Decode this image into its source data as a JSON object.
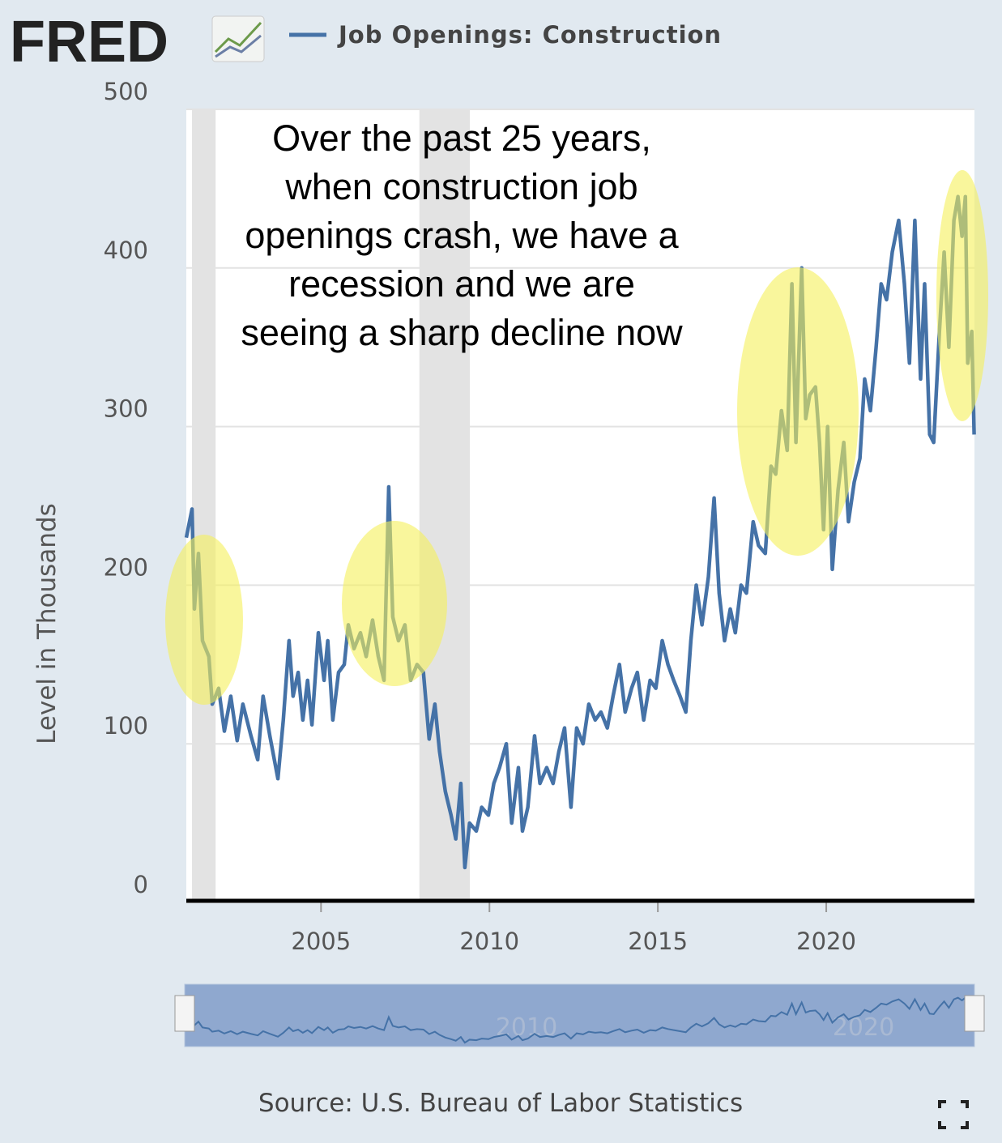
{
  "logo": "FRED",
  "source": "Source: U.S. Bureau of Labor Statistics",
  "chart_data": {
    "type": "line",
    "y_label": "Level in Thousands",
    "annotation": [
      "Over the past 25 years,",
      "when construction job",
      "openings crash, we have a",
      "recession and we are",
      "seeing a sharp decline now"
    ],
    "xlim": [
      2001,
      2024.4
    ],
    "xticks": [
      2005,
      2010,
      2015,
      2020
    ],
    "ylim": [
      0,
      500
    ],
    "yticks": [
      0,
      100,
      200,
      300,
      400,
      500
    ],
    "grid": true,
    "recessions": [
      [
        2001.17,
        2001.87
      ],
      [
        2007.92,
        2009.42
      ]
    ],
    "navigator_labels": [
      "2010",
      "2020"
    ],
    "x": [
      2001.0,
      2001.17,
      2001.24,
      2001.36,
      2001.48,
      2001.67,
      2001.77,
      2001.96,
      2002.13,
      2002.32,
      2002.51,
      2002.68,
      2002.92,
      2003.12,
      2003.28,
      2003.48,
      2003.72,
      2003.88,
      2004.05,
      2004.17,
      2004.32,
      2004.46,
      2004.6,
      2004.73,
      2004.92,
      2005.09,
      2005.2,
      2005.35,
      2005.52,
      2005.69,
      2005.81,
      2005.98,
      2006.17,
      2006.34,
      2006.53,
      2006.7,
      2006.87,
      2007.01,
      2007.13,
      2007.3,
      2007.49,
      2007.66,
      2007.85,
      2008.04,
      2008.21,
      2008.38,
      2008.52,
      2008.69,
      2008.86,
      2009.0,
      2009.15,
      2009.27,
      2009.41,
      2009.61,
      2009.77,
      2009.97,
      2010.13,
      2010.3,
      2010.5,
      2010.66,
      2010.86,
      2010.98,
      2011.14,
      2011.34,
      2011.5,
      2011.7,
      2011.89,
      2012.06,
      2012.23,
      2012.42,
      2012.59,
      2012.78,
      2012.95,
      2013.14,
      2013.31,
      2013.5,
      2013.67,
      2013.86,
      2014.03,
      2014.22,
      2014.39,
      2014.58,
      2014.77,
      2014.94,
      2015.13,
      2015.3,
      2015.47,
      2015.66,
      2015.83,
      2015.98,
      2016.14,
      2016.31,
      2016.5,
      2016.67,
      2016.82,
      2016.98,
      2017.15,
      2017.3,
      2017.47,
      2017.63,
      2017.83,
      2017.99,
      2018.19,
      2018.36,
      2018.5,
      2018.67,
      2018.84,
      2018.98,
      2019.1,
      2019.27,
      2019.39,
      2019.51,
      2019.68,
      2019.8,
      2019.92,
      2020.04,
      2020.18,
      2020.35,
      2020.52,
      2020.66,
      2020.83,
      2021.0,
      2021.14,
      2021.31,
      2021.48,
      2021.63,
      2021.79,
      2021.96,
      2022.15,
      2022.32,
      2022.47,
      2022.63,
      2022.8,
      2022.92,
      2023.07,
      2023.19,
      2023.36,
      2023.5,
      2023.64,
      2023.79,
      2023.91,
      2024.03,
      2024.13,
      2024.2,
      2024.32,
      2024.39
    ],
    "series": [
      {
        "name": "Job Openings: Construction",
        "color": "#4572a7",
        "values": [
          230,
          248,
          185,
          220,
          165,
          155,
          125,
          135,
          108,
          130,
          102,
          125,
          105,
          90,
          130,
          105,
          78,
          115,
          165,
          130,
          145,
          115,
          140,
          112,
          170,
          140,
          165,
          115,
          145,
          150,
          175,
          160,
          170,
          155,
          178,
          155,
          140,
          262,
          180,
          165,
          175,
          140,
          150,
          145,
          103,
          125,
          95,
          70,
          55,
          40,
          75,
          22,
          50,
          45,
          60,
          55,
          75,
          85,
          100,
          50,
          85,
          45,
          60,
          105,
          75,
          85,
          75,
          95,
          110,
          60,
          110,
          100,
          125,
          115,
          120,
          110,
          130,
          150,
          120,
          135,
          145,
          115,
          140,
          135,
          165,
          150,
          140,
          130,
          120,
          165,
          200,
          175,
          205,
          255,
          195,
          165,
          185,
          170,
          200,
          195,
          240,
          225,
          220,
          275,
          270,
          310,
          285,
          390,
          290,
          400,
          305,
          320,
          325,
          290,
          235,
          300,
          210,
          260,
          290,
          240,
          265,
          280,
          330,
          310,
          350,
          390,
          380,
          410,
          430,
          390,
          340,
          430,
          330,
          390,
          295,
          290,
          360,
          410,
          350,
          430,
          445,
          420,
          445,
          340,
          360,
          295
        ]
      }
    ]
  }
}
